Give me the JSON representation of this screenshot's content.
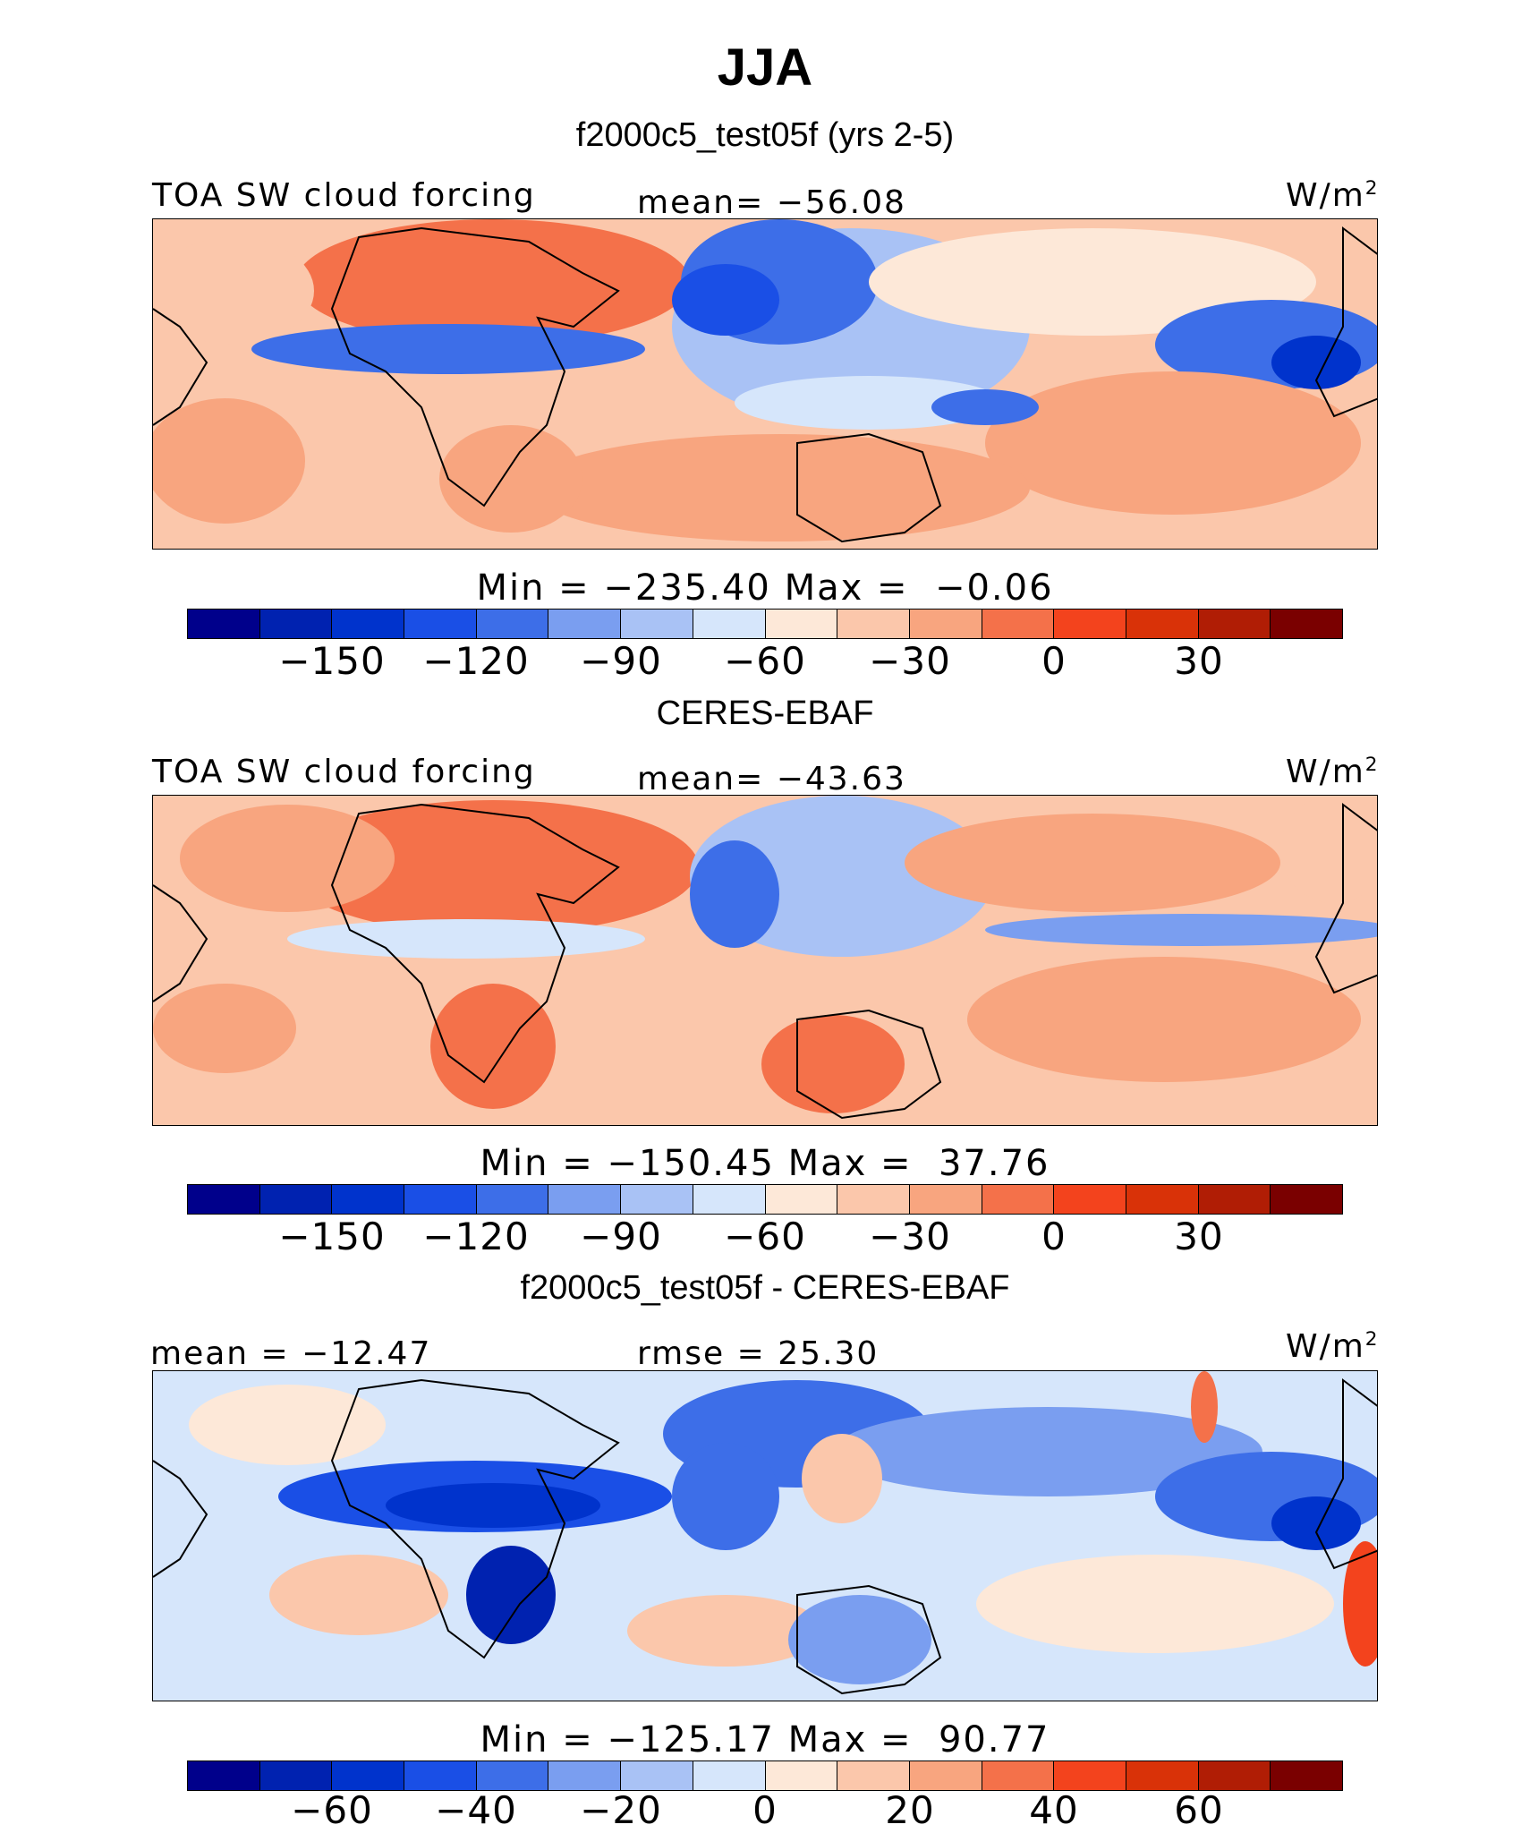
{
  "title": "JJA",
  "subtitle": "f2000c5_test05f (yrs 2-5)",
  "colors": {
    "blue_red_scale": [
      "#00008b",
      "#0022b0",
      "#0033cc",
      "#1a4fe6",
      "#3d6ee8",
      "#7a9ef0",
      "#a9c2f5",
      "#d6e6fb",
      "#fde8d8",
      "#fbc7ab",
      "#f8a57f",
      "#f4714a",
      "#f3431d",
      "#d93208",
      "#b01d05",
      "#7a0000"
    ]
  },
  "panels": [
    {
      "panel_title": "",
      "left_label": "TOA SW cloud forcing",
      "center_label": "mean= −56.08",
      "units": "W/m",
      "units_sup": "2",
      "minmax": "Min = −235.40 Max =  −0.06",
      "ticks": [
        "−150",
        "−120",
        "−90",
        "−60",
        "−30",
        "0",
        "30"
      ]
    },
    {
      "panel_title": "CERES-EBAF",
      "left_label": "TOA SW cloud forcing",
      "center_label": "mean= −43.63",
      "units": "W/m",
      "units_sup": "2",
      "minmax": "Min = −150.45 Max =  37.76",
      "ticks": [
        "−150",
        "−120",
        "−90",
        "−60",
        "−30",
        "0",
        "30"
      ]
    },
    {
      "panel_title": "f2000c5_test05f - CERES-EBAF",
      "left_label": "mean = −12.47",
      "center_label": "rmse =  25.30",
      "units": "W/m",
      "units_sup": "2",
      "minmax": "Min = −125.17 Max =  90.77",
      "ticks": [
        "−60",
        "−40",
        "−20",
        "0",
        "20",
        "40",
        "60"
      ]
    }
  ]
}
